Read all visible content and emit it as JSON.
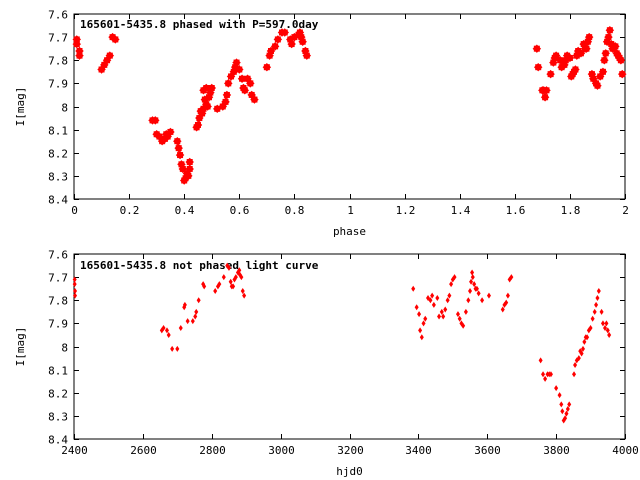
{
  "chart_data": [
    {
      "type": "scatter",
      "title": "165601-5435.8 phased with P=597.0day",
      "xlabel": "phase",
      "ylabel": "I[mag]",
      "xlim": [
        0,
        2
      ],
      "ylim": [
        7.6,
        8.4
      ],
      "y_inverted": true,
      "xticks": [
        0,
        0.2,
        0.4,
        0.6,
        0.8,
        1,
        1.2,
        1.4,
        1.6,
        1.8,
        2
      ],
      "xtick_labels": [
        "0",
        "0.2",
        "0.4",
        "0.6",
        "0.8",
        "1",
        "1.2",
        "1.4",
        "1.6",
        "1.8",
        "2"
      ],
      "yticks": [
        7.6,
        7.7,
        7.8,
        7.9,
        8.0,
        8.1,
        8.2,
        8.3,
        8.4
      ],
      "ytick_labels": [
        "7.6",
        "7.7",
        "7.8",
        "7.9",
        "8",
        "8.1",
        "8.2",
        "8.3",
        "8.4"
      ],
      "marker_color": "#ff0000",
      "grid": false,
      "points": [
        [
          0.01,
          7.71
        ],
        [
          0.01,
          7.73
        ],
        [
          0.02,
          7.76
        ],
        [
          0.02,
          7.78
        ],
        [
          0.1,
          7.84
        ],
        [
          0.11,
          7.82
        ],
        [
          0.12,
          7.8
        ],
        [
          0.13,
          7.78
        ],
        [
          0.14,
          7.7
        ],
        [
          0.15,
          7.71
        ],
        [
          0.285,
          8.06
        ],
        [
          0.295,
          8.06
        ],
        [
          0.3,
          8.12
        ],
        [
          0.31,
          8.13
        ],
        [
          0.32,
          8.15
        ],
        [
          0.33,
          8.14
        ],
        [
          0.335,
          8.12
        ],
        [
          0.34,
          8.13
        ],
        [
          0.35,
          8.11
        ],
        [
          0.375,
          8.15
        ],
        [
          0.38,
          8.18
        ],
        [
          0.385,
          8.21
        ],
        [
          0.39,
          8.25
        ],
        [
          0.395,
          8.27
        ],
        [
          0.4,
          8.32
        ],
        [
          0.405,
          8.31
        ],
        [
          0.41,
          8.29
        ],
        [
          0.415,
          8.3
        ],
        [
          0.42,
          8.27
        ],
        [
          0.42,
          8.24
        ],
        [
          0.445,
          8.09
        ],
        [
          0.45,
          8.08
        ],
        [
          0.455,
          8.05
        ],
        [
          0.46,
          8.02
        ],
        [
          0.465,
          8.03
        ],
        [
          0.47,
          8.01
        ],
        [
          0.475,
          7.97
        ],
        [
          0.48,
          7.99
        ],
        [
          0.485,
          8.0
        ],
        [
          0.49,
          7.96
        ],
        [
          0.495,
          7.94
        ],
        [
          0.47,
          7.93
        ],
        [
          0.48,
          7.92
        ],
        [
          0.5,
          7.92
        ],
        [
          0.52,
          8.01
        ],
        [
          0.54,
          8.0
        ],
        [
          0.55,
          7.98
        ],
        [
          0.555,
          7.95
        ],
        [
          0.56,
          7.9
        ],
        [
          0.57,
          7.87
        ],
        [
          0.58,
          7.85
        ],
        [
          0.585,
          7.83
        ],
        [
          0.59,
          7.81
        ],
        [
          0.6,
          7.84
        ],
        [
          0.61,
          7.88
        ],
        [
          0.615,
          7.92
        ],
        [
          0.62,
          7.93
        ],
        [
          0.63,
          7.88
        ],
        [
          0.64,
          7.9
        ],
        [
          0.645,
          7.95
        ],
        [
          0.655,
          7.97
        ],
        [
          0.7,
          7.83
        ],
        [
          0.71,
          7.78
        ],
        [
          0.715,
          7.76
        ],
        [
          0.73,
          7.74
        ],
        [
          0.74,
          7.71
        ],
        [
          0.755,
          7.68
        ],
        [
          0.765,
          7.68
        ],
        [
          0.785,
          7.71
        ],
        [
          0.79,
          7.73
        ],
        [
          0.8,
          7.7
        ],
        [
          0.815,
          7.69
        ],
        [
          0.82,
          7.68
        ],
        [
          0.825,
          7.7
        ],
        [
          0.83,
          7.72
        ],
        [
          0.84,
          7.76
        ],
        [
          0.845,
          7.78
        ],
        [
          1.68,
          7.75
        ],
        [
          1.685,
          7.83
        ],
        [
          1.7,
          7.93
        ],
        [
          1.705,
          7.93
        ],
        [
          1.71,
          7.96
        ],
        [
          1.715,
          7.93
        ],
        [
          1.73,
          7.86
        ],
        [
          1.74,
          7.81
        ],
        [
          1.745,
          7.79
        ],
        [
          1.75,
          7.78
        ],
        [
          1.765,
          7.8
        ],
        [
          1.77,
          7.83
        ],
        [
          1.78,
          7.82
        ],
        [
          1.785,
          7.8
        ],
        [
          1.79,
          7.78
        ],
        [
          1.8,
          7.79
        ],
        [
          1.805,
          7.87
        ],
        [
          1.81,
          7.86
        ],
        [
          1.815,
          7.85
        ],
        [
          1.82,
          7.84
        ],
        [
          1.825,
          7.78
        ],
        [
          1.83,
          7.76
        ],
        [
          1.84,
          7.77
        ],
        [
          1.85,
          7.73
        ],
        [
          1.855,
          7.75
        ],
        [
          1.86,
          7.75
        ],
        [
          1.865,
          7.72
        ],
        [
          1.87,
          7.7
        ],
        [
          1.88,
          7.86
        ],
        [
          1.885,
          7.88
        ],
        [
          1.895,
          7.9
        ],
        [
          1.9,
          7.91
        ],
        [
          1.91,
          7.87
        ],
        [
          1.92,
          7.85
        ],
        [
          1.925,
          7.8
        ],
        [
          1.93,
          7.77
        ],
        [
          1.935,
          7.72
        ],
        [
          1.94,
          7.7
        ],
        [
          1.945,
          7.67
        ],
        [
          1.95,
          7.73
        ],
        [
          1.955,
          7.75
        ],
        [
          1.96,
          7.74
        ],
        [
          1.965,
          7.74
        ],
        [
          1.97,
          7.77
        ],
        [
          1.975,
          7.78
        ],
        [
          1.98,
          7.79
        ],
        [
          1.985,
          7.8
        ],
        [
          1.99,
          7.86
        ]
      ]
    },
    {
      "type": "scatter",
      "title": "165601-5435.8 not phased light curve",
      "xlabel": "hjd0",
      "ylabel": "I[mag]",
      "xlim": [
        2400,
        4000
      ],
      "ylim": [
        7.6,
        8.4
      ],
      "y_inverted": true,
      "xticks": [
        2400,
        2600,
        2800,
        3000,
        3200,
        3400,
        3600,
        3800,
        4000
      ],
      "xtick_labels": [
        "2400",
        "2600",
        "2800",
        "3000",
        "3200",
        "3400",
        "3600",
        "3800",
        "4000"
      ],
      "yticks": [
        7.6,
        7.7,
        7.8,
        7.9,
        8.0,
        8.1,
        8.2,
        8.3,
        8.4
      ],
      "ytick_labels": [
        "7.6",
        "7.7",
        "7.8",
        "7.9",
        "8",
        "8.1",
        "8.2",
        "8.3",
        "8.4"
      ],
      "marker_color": "#ff0000",
      "grid": false,
      "points": [
        [
          2402,
          7.71
        ],
        [
          2402,
          7.73
        ],
        [
          2403,
          7.76
        ],
        [
          2403,
          7.78
        ],
        [
          2655,
          7.93
        ],
        [
          2660,
          7.92
        ],
        [
          2670,
          7.93
        ],
        [
          2675,
          7.95
        ],
        [
          2685,
          8.01
        ],
        [
          2700,
          8.01
        ],
        [
          2710,
          7.92
        ],
        [
          2720,
          7.83
        ],
        [
          2722,
          7.82
        ],
        [
          2730,
          7.89
        ],
        [
          2745,
          7.89
        ],
        [
          2752,
          7.87
        ],
        [
          2755,
          7.85
        ],
        [
          2762,
          7.8
        ],
        [
          2775,
          7.73
        ],
        [
          2778,
          7.74
        ],
        [
          2810,
          7.76
        ],
        [
          2818,
          7.74
        ],
        [
          2822,
          7.73
        ],
        [
          2835,
          7.7
        ],
        [
          2845,
          7.65
        ],
        [
          2850,
          7.66
        ],
        [
          2855,
          7.72
        ],
        [
          2858,
          7.74
        ],
        [
          2862,
          7.74
        ],
        [
          2866,
          7.71
        ],
        [
          2870,
          7.7
        ],
        [
          2876,
          7.68
        ],
        [
          2880,
          7.67
        ],
        [
          2882,
          7.69
        ],
        [
          2886,
          7.7
        ],
        [
          2890,
          7.76
        ],
        [
          2894,
          7.78
        ],
        [
          3385,
          7.75
        ],
        [
          3395,
          7.83
        ],
        [
          3402,
          7.86
        ],
        [
          3405,
          7.93
        ],
        [
          3410,
          7.96
        ],
        [
          3415,
          7.9
        ],
        [
          3420,
          7.88
        ],
        [
          3428,
          7.79
        ],
        [
          3435,
          7.8
        ],
        [
          3440,
          7.78
        ],
        [
          3445,
          7.82
        ],
        [
          3455,
          7.79
        ],
        [
          3460,
          7.87
        ],
        [
          3468,
          7.85
        ],
        [
          3472,
          7.87
        ],
        [
          3478,
          7.84
        ],
        [
          3485,
          7.8
        ],
        [
          3490,
          7.78
        ],
        [
          3495,
          7.73
        ],
        [
          3500,
          7.71
        ],
        [
          3505,
          7.7
        ],
        [
          3515,
          7.86
        ],
        [
          3520,
          7.88
        ],
        [
          3525,
          7.9
        ],
        [
          3530,
          7.91
        ],
        [
          3538,
          7.85
        ],
        [
          3545,
          7.8
        ],
        [
          3550,
          7.76
        ],
        [
          3553,
          7.72
        ],
        [
          3556,
          7.68
        ],
        [
          3558,
          7.7
        ],
        [
          3562,
          7.73
        ],
        [
          3566,
          7.75
        ],
        [
          3570,
          7.75
        ],
        [
          3575,
          7.77
        ],
        [
          3585,
          7.8
        ],
        [
          3605,
          7.78
        ],
        [
          3645,
          7.84
        ],
        [
          3650,
          7.82
        ],
        [
          3655,
          7.81
        ],
        [
          3660,
          7.78
        ],
        [
          3665,
          7.71
        ],
        [
          3670,
          7.7
        ],
        [
          3755,
          8.06
        ],
        [
          3762,
          8.12
        ],
        [
          3768,
          8.14
        ],
        [
          3775,
          8.12
        ],
        [
          3780,
          8.12
        ],
        [
          3785,
          8.12
        ],
        [
          3800,
          8.18
        ],
        [
          3810,
          8.21
        ],
        [
          3815,
          8.25
        ],
        [
          3818,
          8.28
        ],
        [
          3822,
          8.32
        ],
        [
          3826,
          8.31
        ],
        [
          3830,
          8.29
        ],
        [
          3834,
          8.27
        ],
        [
          3838,
          8.25
        ],
        [
          3852,
          8.12
        ],
        [
          3855,
          8.08
        ],
        [
          3860,
          8.06
        ],
        [
          3866,
          8.05
        ],
        [
          3870,
          8.02
        ],
        [
          3874,
          8.03
        ],
        [
          3878,
          8.01
        ],
        [
          3882,
          7.98
        ],
        [
          3886,
          7.96
        ],
        [
          3890,
          7.96
        ],
        [
          3895,
          7.93
        ],
        [
          3900,
          7.92
        ],
        [
          3906,
          7.88
        ],
        [
          3912,
          7.85
        ],
        [
          3916,
          7.82
        ],
        [
          3920,
          7.79
        ],
        [
          3924,
          7.76
        ],
        [
          3932,
          7.85
        ],
        [
          3936,
          7.9
        ],
        [
          3942,
          7.92
        ],
        [
          3946,
          7.9
        ],
        [
          3950,
          7.93
        ],
        [
          3954,
          7.95
        ]
      ]
    }
  ]
}
